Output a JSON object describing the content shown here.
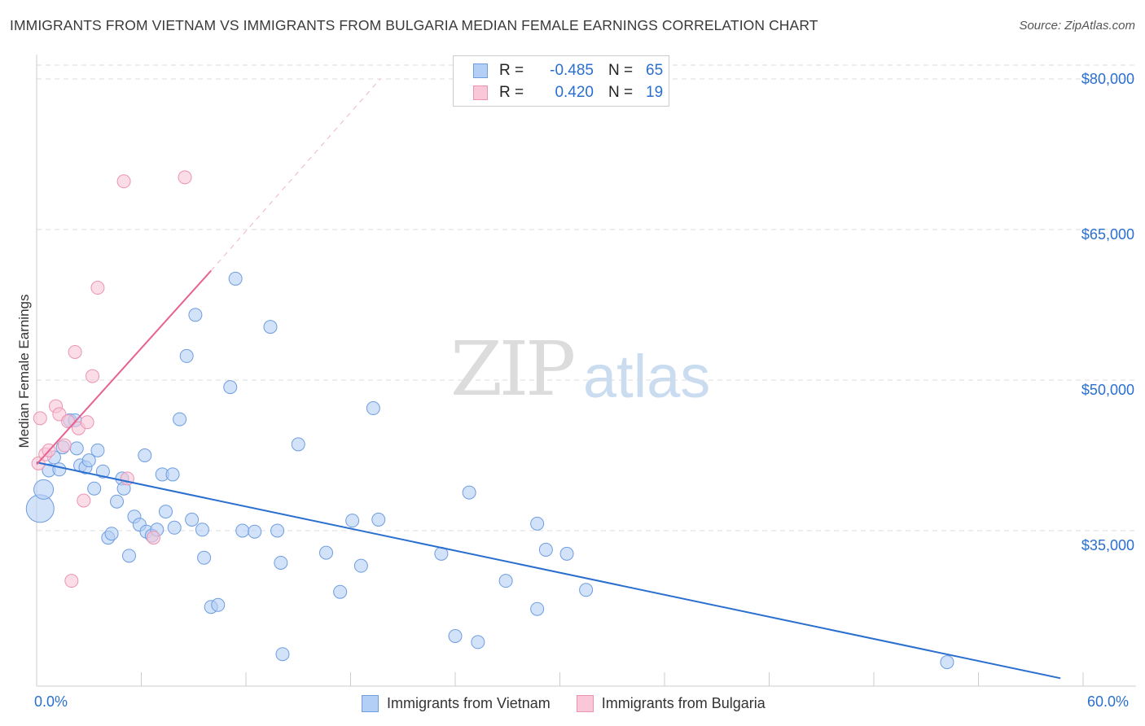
{
  "title": "IMMIGRANTS FROM VIETNAM VS IMMIGRANTS FROM BULGARIA MEDIAN FEMALE EARNINGS CORRELATION CHART",
  "source": "Source: ZipAtlas.com",
  "watermark": {
    "zip": "ZIP",
    "atlas": "atlas"
  },
  "legend_top": [
    {
      "r_label": "R =",
      "r_value": "-0.485",
      "n_label": "N =",
      "n_value": "65",
      "color": "blue"
    },
    {
      "r_label": "R =",
      "r_value": "0.420",
      "n_label": "N =",
      "n_value": "19",
      "color": "pink"
    }
  ],
  "legend_bottom": [
    {
      "label": "Immigrants from Vietnam",
      "color": "blue"
    },
    {
      "label": "Immigrants from Bulgaria",
      "color": "pink"
    }
  ],
  "colors": {
    "blue_fill": "#b4cff5",
    "blue_stroke": "#6e9de0",
    "blue_line": "#2a6fcf",
    "pink_fill": "#f9c7d7",
    "pink_stroke": "#ec93b1",
    "pink_line": "#e8628e",
    "grid": "#dddddd",
    "axis_text": "#2a6fcf"
  },
  "chart_data": {
    "type": "scatter",
    "title": "IMMIGRANTS FROM VIETNAM VS IMMIGRANTS FROM BULGARIA MEDIAN FEMALE EARNINGS CORRELATION CHART",
    "xlabel": "",
    "ylabel": "Median Female Earnings",
    "xlim": [
      0,
      60
    ],
    "ylim": [
      20000,
      81500
    ],
    "x_tick_labels": [
      "0.0%",
      "60.0%"
    ],
    "y_ticks": [
      35000,
      50000,
      65000,
      80000
    ],
    "y_tick_labels": [
      "$35,000",
      "$50,000",
      "$65,000",
      "$80,000"
    ],
    "grid": true,
    "legend_position": "top-center",
    "series": [
      {
        "name": "Immigrants from Vietnam",
        "color": "blue",
        "points": [
          {
            "x": 0.2,
            "y": 37200,
            "s": 3
          },
          {
            "x": 0.4,
            "y": 39100,
            "s": 2
          },
          {
            "x": 0.7,
            "y": 41000,
            "s": 1
          },
          {
            "x": 1.0,
            "y": 42300,
            "s": 1
          },
          {
            "x": 1.3,
            "y": 41100,
            "s": 1
          },
          {
            "x": 1.5,
            "y": 43300,
            "s": 1
          },
          {
            "x": 1.9,
            "y": 46000,
            "s": 1
          },
          {
            "x": 2.2,
            "y": 46000,
            "s": 1
          },
          {
            "x": 2.3,
            "y": 43200,
            "s": 1
          },
          {
            "x": 2.5,
            "y": 41500,
            "s": 1
          },
          {
            "x": 2.8,
            "y": 41300,
            "s": 1
          },
          {
            "x": 3.0,
            "y": 42000,
            "s": 1
          },
          {
            "x": 3.3,
            "y": 39200,
            "s": 1
          },
          {
            "x": 3.5,
            "y": 43000,
            "s": 1
          },
          {
            "x": 3.8,
            "y": 40900,
            "s": 1
          },
          {
            "x": 4.1,
            "y": 34300,
            "s": 1
          },
          {
            "x": 4.3,
            "y": 34700,
            "s": 1
          },
          {
            "x": 4.6,
            "y": 37900,
            "s": 1
          },
          {
            "x": 4.9,
            "y": 40200,
            "s": 1
          },
          {
            "x": 5.0,
            "y": 39200,
            "s": 1
          },
          {
            "x": 5.3,
            "y": 32500,
            "s": 1
          },
          {
            "x": 5.6,
            "y": 36400,
            "s": 1
          },
          {
            "x": 5.9,
            "y": 35600,
            "s": 1
          },
          {
            "x": 6.2,
            "y": 42500,
            "s": 1
          },
          {
            "x": 6.3,
            "y": 34900,
            "s": 1
          },
          {
            "x": 6.6,
            "y": 34500,
            "s": 1
          },
          {
            "x": 6.9,
            "y": 35100,
            "s": 1
          },
          {
            "x": 7.2,
            "y": 40600,
            "s": 1
          },
          {
            "x": 7.4,
            "y": 36900,
            "s": 1
          },
          {
            "x": 7.8,
            "y": 40600,
            "s": 1
          },
          {
            "x": 7.9,
            "y": 35300,
            "s": 1
          },
          {
            "x": 8.2,
            "y": 46100,
            "s": 1
          },
          {
            "x": 8.6,
            "y": 52400,
            "s": 1
          },
          {
            "x": 8.9,
            "y": 36100,
            "s": 1
          },
          {
            "x": 9.1,
            "y": 56500,
            "s": 1
          },
          {
            "x": 9.5,
            "y": 35100,
            "s": 1
          },
          {
            "x": 9.6,
            "y": 32300,
            "s": 1
          },
          {
            "x": 10.0,
            "y": 27400,
            "s": 1
          },
          {
            "x": 10.4,
            "y": 27600,
            "s": 1
          },
          {
            "x": 11.1,
            "y": 49300,
            "s": 1
          },
          {
            "x": 11.4,
            "y": 60100,
            "s": 1
          },
          {
            "x": 11.8,
            "y": 35000,
            "s": 1
          },
          {
            "x": 12.5,
            "y": 34900,
            "s": 1
          },
          {
            "x": 13.4,
            "y": 55300,
            "s": 1
          },
          {
            "x": 13.8,
            "y": 35000,
            "s": 1
          },
          {
            "x": 14.0,
            "y": 31800,
            "s": 1
          },
          {
            "x": 14.1,
            "y": 22700,
            "s": 1
          },
          {
            "x": 15.0,
            "y": 43600,
            "s": 1
          },
          {
            "x": 16.6,
            "y": 32800,
            "s": 1
          },
          {
            "x": 17.4,
            "y": 28900,
            "s": 1
          },
          {
            "x": 18.1,
            "y": 36000,
            "s": 1
          },
          {
            "x": 18.6,
            "y": 31500,
            "s": 1
          },
          {
            "x": 19.3,
            "y": 47200,
            "s": 1
          },
          {
            "x": 19.6,
            "y": 36100,
            "s": 1
          },
          {
            "x": 23.2,
            "y": 32700,
            "s": 1
          },
          {
            "x": 24.0,
            "y": 24500,
            "s": 1
          },
          {
            "x": 24.8,
            "y": 38800,
            "s": 1
          },
          {
            "x": 25.3,
            "y": 23900,
            "s": 1
          },
          {
            "x": 26.9,
            "y": 30000,
            "s": 1
          },
          {
            "x": 28.7,
            "y": 35700,
            "s": 1
          },
          {
            "x": 28.7,
            "y": 27200,
            "s": 1
          },
          {
            "x": 29.2,
            "y": 33100,
            "s": 1
          },
          {
            "x": 30.4,
            "y": 32700,
            "s": 1
          },
          {
            "x": 31.5,
            "y": 29100,
            "s": 1
          },
          {
            "x": 52.2,
            "y": 21900,
            "s": 1
          }
        ],
        "trend": {
          "x": [
            0,
            58.7
          ],
          "y": [
            41800,
            20300
          ]
        }
      },
      {
        "name": "Immigrants from Bulgaria",
        "color": "pink",
        "points": [
          {
            "x": 0.1,
            "y": 41700,
            "s": 1
          },
          {
            "x": 0.2,
            "y": 46200,
            "s": 1
          },
          {
            "x": 0.5,
            "y": 42600,
            "s": 1
          },
          {
            "x": 0.7,
            "y": 43000,
            "s": 1
          },
          {
            "x": 1.1,
            "y": 47400,
            "s": 1
          },
          {
            "x": 1.3,
            "y": 46600,
            "s": 1
          },
          {
            "x": 1.6,
            "y": 43500,
            "s": 1
          },
          {
            "x": 1.8,
            "y": 45900,
            "s": 1
          },
          {
            "x": 2.0,
            "y": 30000,
            "s": 1
          },
          {
            "x": 2.2,
            "y": 52800,
            "s": 1
          },
          {
            "x": 2.4,
            "y": 45200,
            "s": 1
          },
          {
            "x": 2.7,
            "y": 38000,
            "s": 1
          },
          {
            "x": 2.9,
            "y": 45800,
            "s": 1
          },
          {
            "x": 3.2,
            "y": 50400,
            "s": 1
          },
          {
            "x": 3.5,
            "y": 59200,
            "s": 1
          },
          {
            "x": 5.0,
            "y": 69800,
            "s": 1
          },
          {
            "x": 5.2,
            "y": 40200,
            "s": 1
          },
          {
            "x": 6.7,
            "y": 34300,
            "s": 1
          },
          {
            "x": 8.5,
            "y": 70200,
            "s": 1
          }
        ],
        "trend": {
          "x": [
            0,
            10.0
          ],
          "y": [
            41600,
            60900
          ]
        },
        "trend_extension": {
          "x": [
            10.0,
            19.7
          ],
          "y": [
            60900,
            80000
          ]
        }
      }
    ]
  }
}
